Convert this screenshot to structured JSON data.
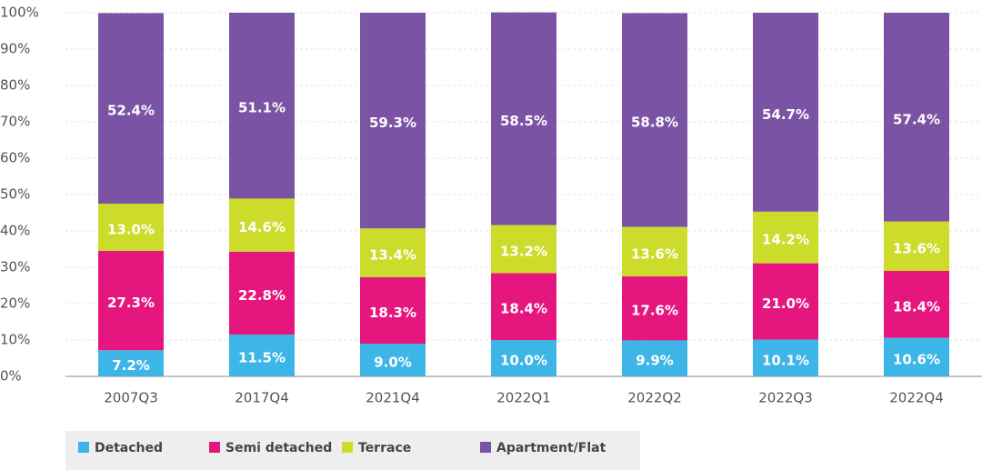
{
  "chart_data": {
    "type": "stacked_bar",
    "categories": [
      "2007Q3",
      "2017Q4",
      "2021Q4",
      "2022Q1",
      "2022Q2",
      "2022Q3",
      "2022Q4"
    ],
    "series": [
      {
        "name": "Detached",
        "color": "#3db5e6",
        "values": [
          7.2,
          11.5,
          9.0,
          10.0,
          9.9,
          10.1,
          10.6
        ],
        "value_labels": [
          "7.2%",
          "11.5%",
          "9.0%",
          "10.0%",
          "9.9%",
          "10.1%",
          "10.6%"
        ]
      },
      {
        "name": "Semi detached",
        "color": "#e5177e",
        "values": [
          27.3,
          22.8,
          18.3,
          18.4,
          17.6,
          21.0,
          18.4
        ],
        "value_labels": [
          "27.3%",
          "22.8%",
          "18.3%",
          "18.4%",
          "17.6%",
          "21.0%",
          "18.4%"
        ]
      },
      {
        "name": "Terrace",
        "color": "#cddc2a",
        "values": [
          13.0,
          14.6,
          13.4,
          13.2,
          13.6,
          14.2,
          13.6
        ],
        "value_labels": [
          "13.0%",
          "14.6%",
          "13.4%",
          "13.2%",
          "13.6%",
          "14.2%",
          "13.6%"
        ]
      },
      {
        "name": "Apartment/Flat",
        "color": "#7b53a4",
        "values": [
          52.4,
          51.1,
          59.3,
          58.5,
          58.8,
          54.7,
          57.4
        ],
        "value_labels": [
          "52.4%",
          "51.1%",
          "59.3%",
          "58.5%",
          "58.8%",
          "54.7%",
          "57.4%"
        ]
      }
    ],
    "ylim": [
      0,
      100
    ],
    "yticks": [
      {
        "value": 0,
        "label": "0%"
      },
      {
        "value": 10,
        "label": "10%"
      },
      {
        "value": 20,
        "label": "20%"
      },
      {
        "value": 30,
        "label": "30%"
      },
      {
        "value": 40,
        "label": "40%"
      },
      {
        "value": 50,
        "label": "50%"
      },
      {
        "value": 60,
        "label": "60%"
      },
      {
        "value": 70,
        "label": "70%"
      },
      {
        "value": 80,
        "label": "80%"
      },
      {
        "value": 90,
        "label": "90%"
      },
      {
        "value": 100,
        "label": "100%"
      }
    ],
    "grid": true,
    "legend": "bottom"
  }
}
